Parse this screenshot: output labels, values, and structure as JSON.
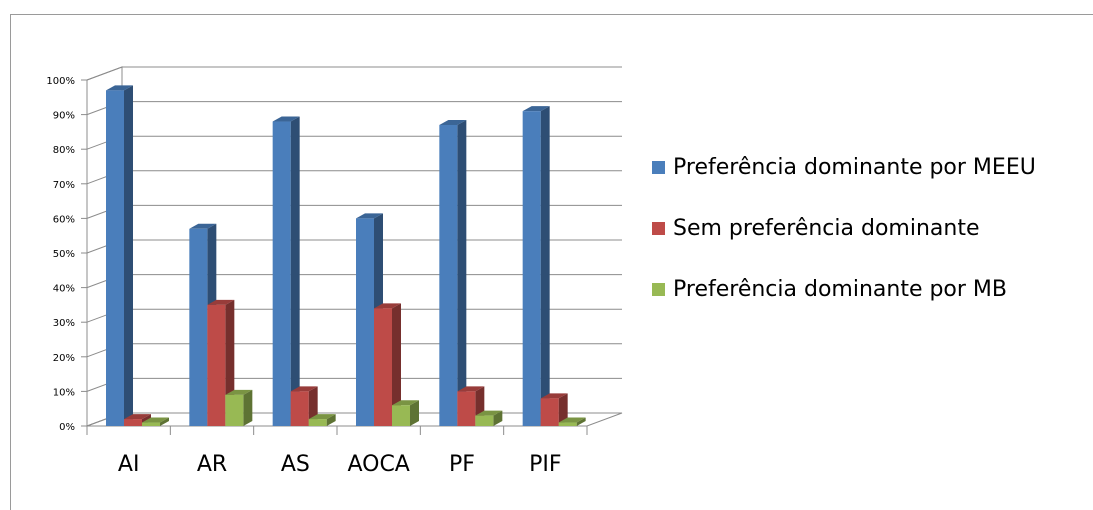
{
  "chart_data": {
    "type": "bar",
    "title": "",
    "xlabel": "",
    "ylabel": "",
    "categories": [
      "AI",
      "AR",
      "AS",
      "AOCA",
      "PF",
      "PIF"
    ],
    "series": [
      {
        "name": "Preferência dominante por MEEU",
        "color": "#4a7ebb",
        "values": [
          97,
          57,
          88,
          60,
          87,
          91
        ]
      },
      {
        "name": "Sem preferência dominante",
        "color": "#be4b48",
        "values": [
          2,
          35,
          10,
          34,
          10,
          8
        ]
      },
      {
        "name": "Preferência dominante por MB",
        "color": "#98b954",
        "values": [
          1,
          9,
          2,
          6,
          3,
          1
        ]
      }
    ],
    "ylim": [
      0,
      100
    ],
    "yticks": [
      "0%",
      "10%",
      "20%",
      "30%",
      "40%",
      "50%",
      "60%",
      "70%",
      "80%",
      "90%",
      "100%"
    ],
    "grid": true,
    "legend_position": "right"
  }
}
